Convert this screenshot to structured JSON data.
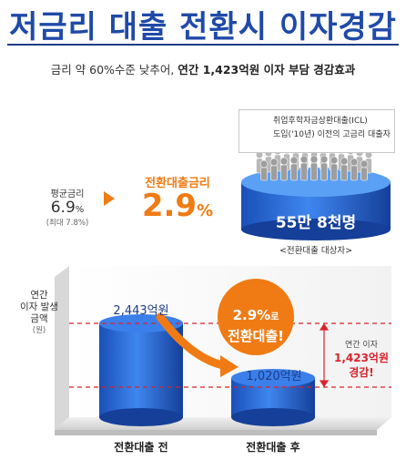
{
  "header": {
    "title": "저금리 대출 전환시 이자경감",
    "subtitle_prefix": "금리 약 60%수준 낮추어, ",
    "subtitle_bold": "연간 1,423억원 이자 부담 경감효과"
  },
  "rates": {
    "avg_label": "평균금리",
    "avg_value": "6.9",
    "avg_unit": "%",
    "avg_note": "(최대 7.8%)",
    "converted_label": "전환대출금리",
    "converted_value": "2.9",
    "converted_unit": "%"
  },
  "legend": {
    "line1": "취업후학자금상환대출(ICL)",
    "line2": "도입('10년) 이전의 고금리 대출자"
  },
  "target_group": {
    "count": "55만 8천명",
    "caption": "<전환대출 대상자>"
  },
  "chart_data": {
    "type": "bar",
    "ylabel_lines": [
      "연간",
      "이자 발생",
      "금액"
    ],
    "yunit": "(원)",
    "categories": [
      "전환대출 전",
      "전환대출 후"
    ],
    "values": [
      2443,
      1020
    ],
    "value_labels": [
      "2,443억원",
      "1,020억원"
    ],
    "callout": {
      "rate": "2.9%",
      "suffix": "로",
      "action": "전환대출!"
    },
    "difference": {
      "label_top": "연간 이자",
      "label_value": "1,423억원",
      "label_bottom": "경감!"
    },
    "colors": {
      "bar": "#1f5fd0",
      "arrow": "#f07b14",
      "dash": "#d9232d",
      "callout": "#f07b14"
    }
  }
}
